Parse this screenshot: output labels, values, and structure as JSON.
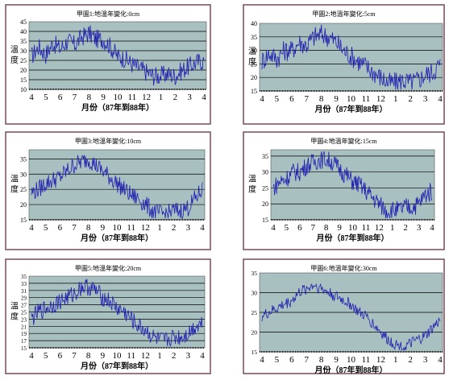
{
  "charts": [
    {
      "title": "甲圖1:地溫年變化:0cm",
      "ylabel_chars": [
        "溫",
        "度"
      ],
      "xlabel": "月份（87年到88年）",
      "x_ticks": [
        "4",
        "5",
        "6",
        "7",
        "8",
        "9",
        "10",
        "11",
        "12",
        "1",
        "2",
        "3",
        "4"
      ],
      "y_ticks": [
        "10",
        "15",
        "20",
        "25",
        "30",
        "35",
        "40",
        "45"
      ]
    },
    {
      "title": "甲圖2:地溫年變化:5cm",
      "ylabel_chars": [
        "溫",
        "度"
      ],
      "xlabel": "月份（87年到88年）",
      "x_ticks": [
        "4",
        "5",
        "6",
        "7",
        "8",
        "9",
        "10",
        "11",
        "12",
        "1",
        "2",
        "3",
        "4"
      ],
      "y_ticks": [
        "15",
        "20",
        "25",
        "30",
        "35",
        "40"
      ]
    },
    {
      "title": "甲圖3:地溫年變化:10cm",
      "ylabel_chars": [
        "溫",
        "度"
      ],
      "xlabel": "月份（87年到88年）",
      "x_ticks": [
        "4",
        "5",
        "6",
        "7",
        "8",
        "9",
        "10",
        "11",
        "12",
        "1",
        "2",
        "3",
        "4"
      ],
      "y_ticks": [
        "15",
        "20",
        "25",
        "30",
        "35"
      ]
    },
    {
      "title": "甲圖4:地溫年變化:15cm",
      "ylabel_chars": [
        "溫",
        "度"
      ],
      "xlabel": "月份（87年到88年）",
      "x_ticks": [
        "4",
        "5",
        "6",
        "7",
        "8",
        "9",
        "10",
        "11",
        "12",
        "1",
        "2",
        "3",
        "4"
      ],
      "y_ticks": [
        "15",
        "20",
        "25",
        "30",
        "35"
      ]
    },
    {
      "title": "甲圖5:地溫年變化:20cm",
      "ylabel_chars": [
        "溫",
        "度"
      ],
      "xlabel": "月份（87年到88年）",
      "x_ticks": [
        "4",
        "5",
        "6",
        "7",
        "8",
        "9",
        "10",
        "11",
        "12",
        "1",
        "2",
        "3",
        "4"
      ],
      "y_ticks": [
        "15",
        "17",
        "19",
        "21",
        "23",
        "25",
        "27",
        "29",
        "31",
        "33",
        "35"
      ]
    },
    {
      "title": "甲圖6:地溫年變化:30cm",
      "ylabel_chars": [],
      "xlabel": "月份（87年到88年）",
      "x_ticks": [
        "4",
        "5",
        "6",
        "7",
        "8",
        "9",
        "10",
        "11",
        "12",
        "1",
        "2",
        "3",
        "4"
      ],
      "y_ticks": [
        "15",
        "20",
        "25",
        "30",
        "35"
      ]
    }
  ],
  "chart_data": [
    {
      "type": "line",
      "title": "甲圖1:地溫年變化:0cm",
      "xlabel": "月份（87年到88年）",
      "ylabel": "溫度",
      "ylim": [
        10,
        45
      ],
      "x_range_months": [
        4,
        16
      ],
      "grid": true,
      "months": [
        4,
        4.5,
        5,
        5.5,
        6,
        6.5,
        7,
        7.5,
        8,
        8.5,
        9,
        9.5,
        10,
        10.5,
        11,
        11.5,
        12,
        12.5,
        13,
        13.5,
        14,
        14.5,
        15,
        15.5,
        16
      ],
      "values": [
        27,
        32,
        28,
        34,
        31,
        35,
        33,
        37,
        39,
        36,
        36,
        32,
        27,
        26,
        23,
        21,
        19,
        17,
        17,
        18,
        17,
        20,
        22,
        24,
        25
      ],
      "noise": 5
    },
    {
      "type": "line",
      "title": "甲圖2:地溫年變化:5cm",
      "xlabel": "月份（87年到88年）",
      "ylabel": "溫度",
      "ylim": [
        15,
        40
      ],
      "x_range_months": [
        4,
        16
      ],
      "grid": true,
      "months": [
        4,
        4.5,
        5,
        5.5,
        6,
        6.5,
        7,
        7.5,
        8,
        8.5,
        9,
        9.5,
        10,
        10.5,
        11,
        11.5,
        12,
        12.5,
        13,
        13.5,
        14,
        14.5,
        15,
        15.5,
        16
      ],
      "values": [
        26,
        29,
        27,
        30,
        30,
        33,
        32,
        35,
        36,
        35,
        33,
        30,
        28,
        26,
        24,
        22,
        20,
        18,
        18,
        19,
        18,
        19,
        21,
        22,
        25
      ],
      "noise": 4
    },
    {
      "type": "line",
      "title": "甲圖3:地溫年變化:10cm",
      "xlabel": "月份（87年到88年）",
      "ylabel": "溫度",
      "ylim": [
        15,
        38
      ],
      "x_range_months": [
        4,
        16
      ],
      "grid": true,
      "months": [
        4,
        4.5,
        5,
        5.5,
        6,
        6.5,
        7,
        7.5,
        8,
        8.5,
        9,
        9.5,
        10,
        10.5,
        11,
        11.5,
        12,
        12.5,
        13,
        13.5,
        14,
        14.5,
        15,
        15.5,
        16
      ],
      "values": [
        24,
        25,
        27,
        28,
        29,
        31,
        33,
        34,
        35,
        33,
        31,
        29,
        27,
        25,
        23,
        22,
        20,
        18,
        17,
        17,
        18,
        18,
        19,
        22,
        25
      ],
      "noise": 3
    },
    {
      "type": "line",
      "title": "甲圖4:地溫年變化:15cm",
      "xlabel": "月份（87年到88年）",
      "ylabel": "溫度",
      "ylim": [
        15,
        37
      ],
      "x_range_months": [
        4,
        16
      ],
      "grid": true,
      "months": [
        4,
        4.5,
        5,
        5.5,
        6,
        6.5,
        7,
        7.5,
        8,
        8.5,
        9,
        9.5,
        10,
        10.5,
        11,
        11.5,
        12,
        12.5,
        13,
        13.5,
        14,
        14.5,
        15,
        15.5,
        16
      ],
      "values": [
        25,
        27,
        28,
        30,
        30,
        32,
        33,
        34,
        34,
        33,
        31,
        29,
        27,
        26,
        24,
        22,
        20,
        18,
        18,
        18,
        19,
        19,
        20,
        23,
        24
      ],
      "noise": 3
    },
    {
      "type": "line",
      "title": "甲圖5:地溫年變化:20cm",
      "xlabel": "月份（87年到88年）",
      "ylabel": "溫度",
      "ylim": [
        15,
        35
      ],
      "x_range_months": [
        4,
        16
      ],
      "grid": true,
      "months": [
        4,
        4.5,
        5,
        5.5,
        6,
        6.5,
        7,
        7.5,
        8,
        8.5,
        9,
        9.5,
        10,
        10.5,
        11,
        11.5,
        12,
        12.5,
        13,
        13.5,
        14,
        14.5,
        15,
        15.5,
        16
      ],
      "values": [
        23,
        25,
        26,
        27,
        28,
        29,
        30,
        32,
        32,
        31,
        29,
        28,
        26,
        25,
        23,
        21,
        20,
        18,
        17,
        17,
        18,
        18,
        19,
        21,
        22
      ],
      "noise": 2.5
    },
    {
      "type": "line",
      "title": "甲圖6:地溫年變化:30cm",
      "xlabel": "月份（87年到88年）",
      "ylabel": "",
      "ylim": [
        15,
        35
      ],
      "x_range_months": [
        4,
        16
      ],
      "grid": true,
      "months": [
        4,
        4.5,
        5,
        5.5,
        6,
        6.5,
        7,
        7.5,
        8,
        8.5,
        9,
        9.5,
        10,
        10.5,
        11,
        11.5,
        12,
        12.5,
        13,
        13.5,
        14,
        14.5,
        15,
        15.5,
        16
      ],
      "values": [
        24,
        25,
        26,
        27,
        28,
        30,
        31,
        32,
        31,
        30,
        29,
        28,
        27,
        25,
        24,
        22,
        20,
        18,
        17,
        16,
        17,
        18,
        19,
        21,
        23
      ],
      "noise": 1.5
    }
  ],
  "colors": {
    "plot_bg": "#a8c0c0",
    "line": "#2020b0",
    "frame": "#7a4a5a",
    "grid": "#000000"
  }
}
